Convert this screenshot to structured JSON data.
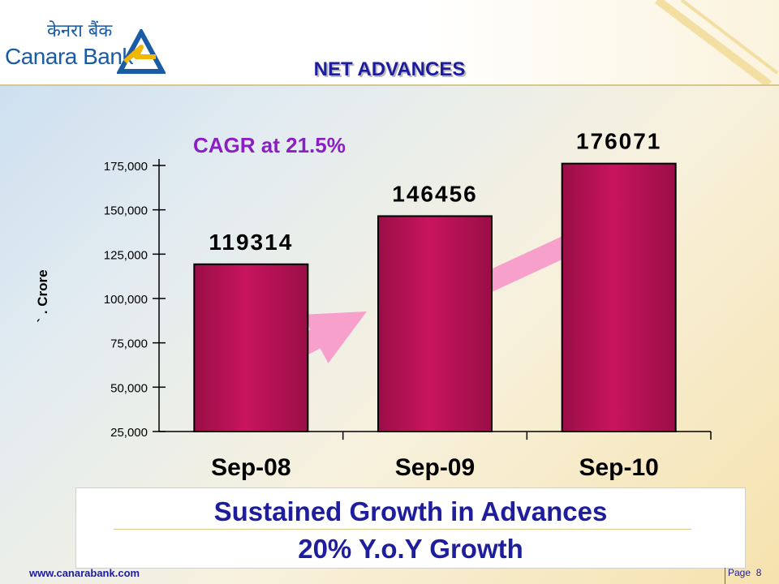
{
  "header": {
    "logo_hindi": "केनरा बैंक",
    "logo_english": "Canara Bank",
    "title": "NET ADVANCES"
  },
  "colors": {
    "bar": "#c8145e",
    "bar_dark": "#9a0e47",
    "arrow": "#f7a0cb",
    "title": "#1d1d9e",
    "annotation": "#8a1fc4"
  },
  "chart_data": {
    "type": "bar",
    "categories": [
      "Sep-08",
      "Sep-09",
      "Sep-10"
    ],
    "values": [
      119314,
      146456,
      176071
    ],
    "data_labels": [
      "119314",
      "146456",
      "176071"
    ],
    "title": "NET ADVANCES",
    "ylabel": "` . Crore",
    "xlabel": "",
    "ylim": [
      25000,
      175000
    ],
    "yticks": [
      25000,
      50000,
      75000,
      100000,
      125000,
      150000,
      175000
    ],
    "ytick_labels": [
      "25,000",
      "50,000",
      "75,000",
      "100,000",
      "125,000",
      "150,000",
      "175,000"
    ],
    "annotation": "CAGR at 21.5%",
    "grid": false,
    "legend": "none"
  },
  "footer": {
    "line1": "Sustained Growth in Advances",
    "line2": "20% Y.o.Y Growth",
    "website": "www.canarabank.com",
    "page_label": "Page",
    "page_number": "8"
  }
}
